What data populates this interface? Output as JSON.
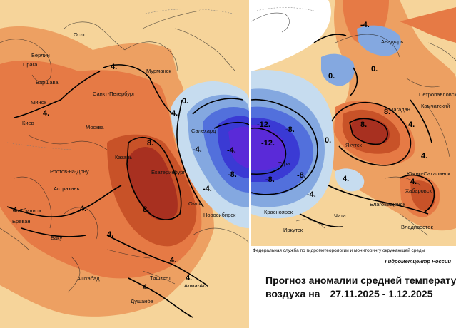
{
  "map": {
    "left_cities": [
      "Осло",
      "Берлин",
      "Прага",
      "Варшава",
      "Мурманск",
      "Санкт-Петербург",
      "Минск",
      "Киев",
      "Москва",
      "Казань",
      "Екатеринбург",
      "Ростов-на-Дону",
      "Астрахань",
      "Тбилиси",
      "Ереван",
      "Баку",
      "Омск",
      "Новосибирск",
      "Ашхабад",
      "Ташкент",
      "Алма-Ата",
      "Душанбе",
      "Салехард"
    ],
    "right_cities": [
      "Анадырь",
      "Петропавловск",
      "Камчатский",
      "Магадан",
      "Якутск",
      "Тура",
      "Южно-Сахалинск",
      "Хабаровск",
      "Благовещенск",
      "Красноярск",
      "Чита",
      "Иркутск",
      "Владивосток"
    ],
    "isotherm_labels": [
      "4.",
      "4.",
      "4.",
      "4.",
      "4.",
      "4.",
      "8.",
      "8.",
      "0.",
      "4.",
      "-4.",
      "-8.",
      "-12.",
      "-4.",
      "-8.",
      "-12.",
      "-8.",
      "-8.",
      "-4.",
      "0.",
      "0.",
      "-4.",
      "4.",
      "8.",
      "4.",
      "4.",
      "-4.",
      "4.",
      "-4.",
      "4.",
      "4.",
      "4.",
      "4.",
      "4."
    ],
    "colors": {
      "warm_light": "#f6d49a",
      "warm_mid": "#eda062",
      "warm": "#e67a45",
      "warm_dark": "#c85228",
      "warm_max": "#a83020",
      "cold_light": "#c6dcef",
      "cold_mid": "#84a8e0",
      "cold": "#5270dc",
      "cold_dark": "#3a3ad4",
      "cold_max": "#5a2ad8"
    }
  },
  "legend": {
    "organization": "Федеральная служба по гидрометеорологии и мониторингу окружающей среды",
    "center": "Гидрометцентр России",
    "title_line1": "Прогноз аномалии средней температуры",
    "title_line2_prefix": "воздуха на",
    "dates": "27.11.2025 -  1.12.2025"
  }
}
